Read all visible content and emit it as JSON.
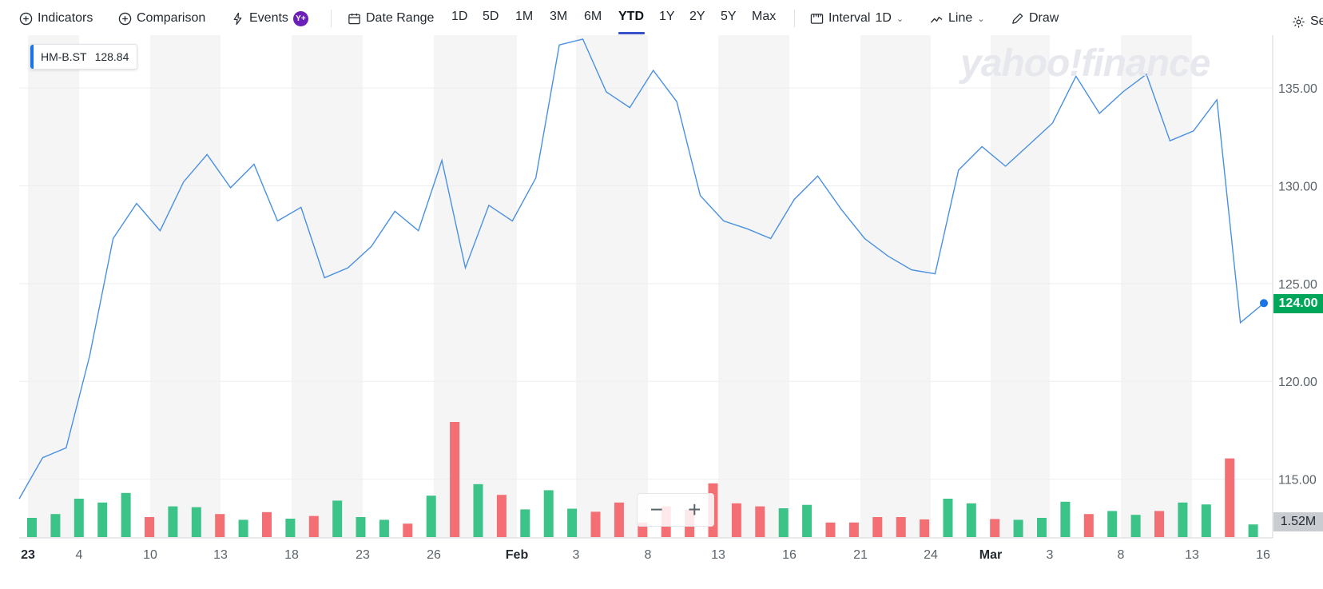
{
  "toolbar": {
    "indicators_label": "Indicators",
    "comparison_label": "Comparison",
    "events_label": "Events",
    "events_badge": "Y+",
    "date_range_label": "Date Range",
    "ranges": [
      "1D",
      "5D",
      "1M",
      "3M",
      "6M",
      "YTD",
      "1Y",
      "2Y",
      "5Y",
      "Max"
    ],
    "active_range": "YTD",
    "interval_label": "Interval",
    "interval_value": "1D",
    "chart_style_label": "Line",
    "draw_label": "Draw",
    "settings_label": "Se"
  },
  "legend": {
    "symbol": "HM-B.ST",
    "value": "128.84",
    "accent": "#1a73e8"
  },
  "watermark": "yahoo!finance",
  "current_price": "124.00",
  "current_volume": "1.52M",
  "colors": {
    "line": "#4a90e2",
    "volume_up": "#3cc387",
    "volume_down": "#f46f73",
    "price_tag": "#00a65a",
    "band": "#f5f5f5"
  },
  "chart_data": {
    "type": "line",
    "x_tick_labels": [
      "23",
      "4",
      "10",
      "13",
      "18",
      "23",
      "26",
      "Feb",
      "3",
      "8",
      "13",
      "16",
      "21",
      "24",
      "Mar",
      "3",
      "8",
      "13",
      "16"
    ],
    "y_tick_labels": [
      "135.00",
      "130.00",
      "125.00",
      "120.00",
      "115.00"
    ],
    "ylim": [
      112.0,
      137.7
    ],
    "series": [
      {
        "name": "HM-B.ST",
        "values": [
          114.0,
          116.1,
          116.6,
          121.3,
          127.3,
          129.1,
          127.7,
          130.2,
          131.6,
          129.9,
          131.1,
          128.2,
          128.9,
          125.3,
          125.8,
          126.9,
          128.7,
          127.7,
          131.3,
          125.8,
          129.0,
          128.2,
          130.4,
          137.2,
          137.5,
          134.8,
          134.0,
          135.9,
          134.3,
          129.5,
          128.2,
          127.8,
          127.3,
          129.3,
          130.5,
          128.8,
          127.3,
          126.4,
          125.7,
          125.5,
          130.8,
          132.0,
          131.0,
          132.1,
          133.2,
          135.6,
          133.7,
          134.8,
          135.7,
          132.3,
          132.8,
          134.4,
          123.0,
          124.0
        ]
      }
    ],
    "volume": {
      "values": [
        0.5,
        0.6,
        1.0,
        0.9,
        1.15,
        0.52,
        0.8,
        0.78,
        0.6,
        0.45,
        0.65,
        0.48,
        0.55,
        0.95,
        0.52,
        0.45,
        0.35,
        1.08,
        3.0,
        1.38,
        1.1,
        0.72,
        1.22,
        0.74,
        0.66,
        0.9,
        0.38,
        0.8,
        0.72,
        1.4,
        0.88,
        0.8,
        0.75,
        0.84,
        0.38,
        0.38,
        0.52,
        0.52,
        0.46,
        1.0,
        0.88,
        0.47,
        0.45,
        0.5,
        0.92,
        0.6,
        0.68,
        0.58,
        0.68,
        0.9,
        0.85,
        2.05,
        0.33
      ],
      "direction": [
        "up",
        "up",
        "up",
        "up",
        "up",
        "down",
        "up",
        "up",
        "down",
        "up",
        "down",
        "up",
        "down",
        "up",
        "up",
        "up",
        "down",
        "up",
        "down",
        "up",
        "down",
        "up",
        "up",
        "up",
        "down",
        "down",
        "down",
        "down",
        "down",
        "down",
        "down",
        "down",
        "up",
        "up",
        "down",
        "down",
        "down",
        "down",
        "down",
        "up",
        "up",
        "down",
        "up",
        "up",
        "up",
        "down",
        "up",
        "up",
        "down",
        "up",
        "up",
        "down",
        "up"
      ]
    }
  }
}
